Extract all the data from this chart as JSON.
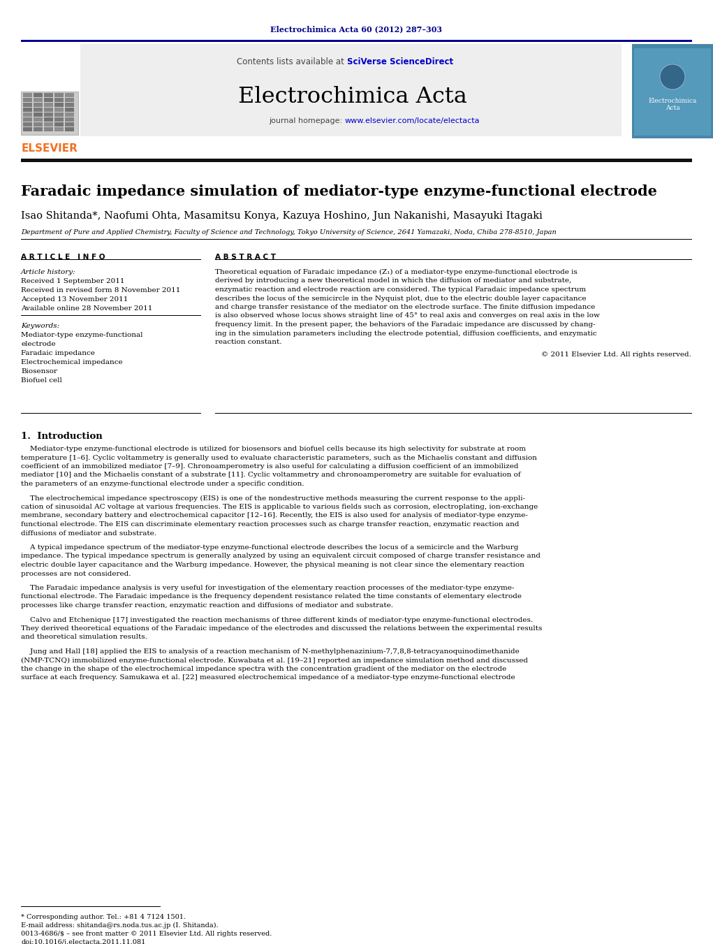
{
  "page_title": "Electrochimica Acta 60 (2012) 287–303",
  "journal_name": "Electrochimica Acta",
  "contents_text_plain": "Contents lists available at ",
  "contents_text_link": "SciVerse ScienceDirect",
  "journal_homepage_plain": "journal homepage: ",
  "journal_homepage_link": "www.elsevier.com/locate/electacta",
  "paper_title": "Faradaic impedance simulation of mediator-type enzyme-functional electrode",
  "authors": "Isao Shitanda*, Naofumi Ohta, Masamitsu Konya, Kazuya Hoshino, Jun Nakanishi, Masayuki Itagaki",
  "affiliation": "Department of Pure and Applied Chemistry, Faculty of Science and Technology, Tokyo University of Science, 2641 Yamazaki, Noda, Chiba 278-8510, Japan",
  "article_info_label": "A R T I C L E   I N F O",
  "abstract_label": "A B S T R A C T",
  "article_history_label": "Article history:",
  "received1": "Received 1 September 2011",
  "received2": "Received in revised form 8 November 2011",
  "accepted": "Accepted 13 November 2011",
  "available": "Available online 28 November 2011",
  "keywords_label": "Keywords:",
  "keywords": [
    "Mediator-type enzyme-functional",
    "electrode",
    "Faradaic impedance",
    "Electrochemical impedance",
    "Biosensor",
    "Biofuel cell"
  ],
  "abstract_lines": [
    "Theoretical equation of Faradaic impedance (Z₁) of a mediator-type enzyme-functional electrode is",
    "derived by introducing a new theoretical model in which the diffusion of mediator and substrate,",
    "enzymatic reaction and electrode reaction are considered. The typical Faradaic impedance spectrum",
    "describes the locus of the semicircle in the Nyquist plot, due to the electric double layer capacitance",
    "and charge transfer resistance of the mediator on the electrode surface. The finite diffusion impedance",
    "is also observed whose locus shows straight line of 45° to real axis and converges on real axis in the low",
    "frequency limit. In the present paper, the behaviors of the Faradaic impedance are discussed by chang-",
    "ing in the simulation parameters including the electrode potential, diffusion coefficients, and enzymatic",
    "reaction constant."
  ],
  "copyright": "© 2011 Elsevier Ltd. All rights reserved.",
  "section1_title": "1.  Introduction",
  "intro_paragraphs": [
    [
      "    Mediator-type enzyme-functional electrode is utilized for biosensors and biofuel cells because its high selectivity for substrate at room",
      "temperature [1–6]. Cyclic voltammetry is generally used to evaluate characteristic parameters, such as the Michaelis constant and diffusion",
      "coefficient of an immobilized mediator [7–9]. Chronoamperometry is also useful for calculating a diffusion coefficient of an immobilized",
      "mediator [10] and the Michaelis constant of a substrate [11]. Cyclic voltammetry and chronoamperometry are suitable for evaluation of",
      "the parameters of an enzyme-functional electrode under a specific condition."
    ],
    [
      "    The electrochemical impedance spectroscopy (EIS) is one of the nondestructive methods measuring the current response to the appli-",
      "cation of sinusoidal AC voltage at various frequencies. The EIS is applicable to various fields such as corrosion, electroplating, ion-exchange",
      "membrane, secondary battery and electrochemical capacitor [12–16]. Recently, the EIS is also used for analysis of mediator-type enzyme-",
      "functional electrode. The EIS can discriminate elementary reaction processes such as charge transfer reaction, enzymatic reaction and",
      "diffusions of mediator and substrate."
    ],
    [
      "    A typical impedance spectrum of the mediator-type enzyme-functional electrode describes the locus of a semicircle and the Warburg",
      "impedance. The typical impedance spectrum is generally analyzed by using an equivalent circuit composed of charge transfer resistance and",
      "electric double layer capacitance and the Warburg impedance. However, the physical meaning is not clear since the elementary reaction",
      "processes are not considered."
    ],
    [
      "    The Faradaic impedance analysis is very useful for investigation of the elementary reaction processes of the mediator-type enzyme-",
      "functional electrode. The Faradaic impedance is the frequency dependent resistance related the time constants of elementary electrode",
      "processes like charge transfer reaction, enzymatic reaction and diffusions of mediator and substrate."
    ],
    [
      "    Calvo and Etchenique [17] investigated the reaction mechanisms of three different kinds of mediator-type enzyme-functional electrodes.",
      "They derived theoretical equations of the Faradaic impedance of the electrodes and discussed the relations between the experimental results",
      "and theoretical simulation results."
    ],
    [
      "    Jung and Hall [18] applied the EIS to analysis of a reaction mechanism of N-methylphenazinium-7,7,8,8-tetracyanoquinodimethanide",
      "(NMP-TCNQ) immobilized enzyme-functional electrode. Kuwabata et al. [19–21] reported an impedance simulation method and discussed",
      "the change in the shape of the electrochemical impedance spectra with the concentration gradient of the mediator on the electrode",
      "surface at each frequency. Samukawa et al. [22] measured electrochemical impedance of a mediator-type enzyme-functional electrode"
    ]
  ],
  "footnote_star": "* Corresponding author. Tel.: +81 4 7124 1501.",
  "footnote_email": "E-mail address: shitanda@rs.noda.tus.ac.jp (I. Shitanda).",
  "footnote_issn": "0013-4686/$ – see front matter © 2011 Elsevier Ltd. All rights reserved.",
  "footnote_doi": "doi:10.1016/j.electacta.2011.11.081",
  "bg_color": "#ffffff",
  "header_bg": "#eeeeee",
  "dark_blue": "#00008B",
  "link_color": "#0000cc",
  "elsevier_orange": "#F37021",
  "title_fontsize": 15,
  "body_fontsize": 7.5,
  "small_fontsize": 6.5,
  "lh": 12.5
}
